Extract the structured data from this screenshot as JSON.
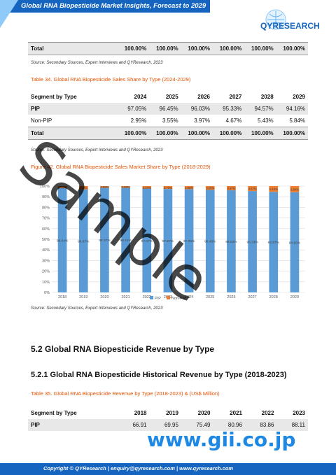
{
  "header": {
    "title": "Global RNA Biopesticide Market Insights, Forecast to 2029",
    "logo": "QYRESEARCH"
  },
  "top_total": {
    "label": "Total",
    "values": [
      "100.00%",
      "100.00%",
      "100.00%",
      "100.00%",
      "100.00%",
      "100.00%"
    ]
  },
  "source1": "Source: Secondary Sources, Expert Interviews and QYResearch, 2023",
  "table34": {
    "caption": "Table 34.   Global RNA Biopesticide Sales Share by Type (2024-2029)",
    "headers": [
      "Segment by Type",
      "2024",
      "2025",
      "2026",
      "2027",
      "2028",
      "2029"
    ],
    "rows": [
      [
        "PIP",
        "97.05%",
        "96.45%",
        "96.03%",
        "95.33%",
        "94.57%",
        "94.16%"
      ],
      [
        "Non-PIP",
        "2.95%",
        "3.55%",
        "3.97%",
        "4.67%",
        "5.43%",
        "5.84%"
      ],
      [
        "Total",
        "100.00%",
        "100.00%",
        "100.00%",
        "100.00%",
        "100.00%",
        "100.00%"
      ]
    ]
  },
  "source2": "Source: Secondary Sources, Expert Interviews and QYResearch, 2023",
  "figure42": {
    "caption": "Figure 42.   Global RNA Biopesticide Sales Market Share by Type (2018-2029)"
  },
  "chart_data": {
    "type": "bar",
    "stacked": true,
    "categories": [
      "2018",
      "2019",
      "2020",
      "2021",
      "2022",
      "2023",
      "2024",
      "2025",
      "2026",
      "2027",
      "2028",
      "2029"
    ],
    "series": [
      {
        "name": "PIP",
        "color": "#5b9bd5",
        "values": [
          98.04,
          96.87,
          98.37,
          98.41,
          97.67,
          97.27,
          97.05,
          96.45,
          96.03,
          95.33,
          94.57,
          94.16
        ]
      },
      {
        "name": "Non-PIP",
        "color": "#ed7d31",
        "values": [
          1.96,
          3.13,
          1.63,
          1.59,
          2.33,
          2.73,
          2.95,
          3.55,
          3.97,
          4.67,
          5.43,
          5.84
        ]
      }
    ],
    "y_ticks": [
      "0%",
      "10%",
      "20%",
      "30%",
      "40%",
      "50%",
      "60%",
      "70%",
      "80%",
      "90%",
      "100%"
    ],
    "ylim": [
      0,
      100
    ],
    "grid": true,
    "legend": "bottom"
  },
  "source3": "Source: Secondary Sources, Expert Interviews and QYResearch, 2023",
  "section52": "5.2  Global RNA Biopesticide Revenue by Type",
  "section521": "5.2.1  Global RNA Biopesticide Historical Revenue by Type (2018-2023)",
  "table35": {
    "caption": "Table 35.   Global RNA Biopesticide Revenue by Type (2018-2023) & (US$ Million)",
    "headers": [
      "Segment by Type",
      "2018",
      "2019",
      "2020",
      "2021",
      "2022",
      "2023"
    ],
    "rows": [
      [
        "PIP",
        "66.91",
        "69.95",
        "75.49",
        "80.96",
        "83.86",
        "88.11"
      ]
    ]
  },
  "watermark": "Sample",
  "url_watermark": "www.gii.co.jp",
  "footer": "Copyright © QYResearch | enquiry@qyresearch.com | www.qyresearch.com"
}
